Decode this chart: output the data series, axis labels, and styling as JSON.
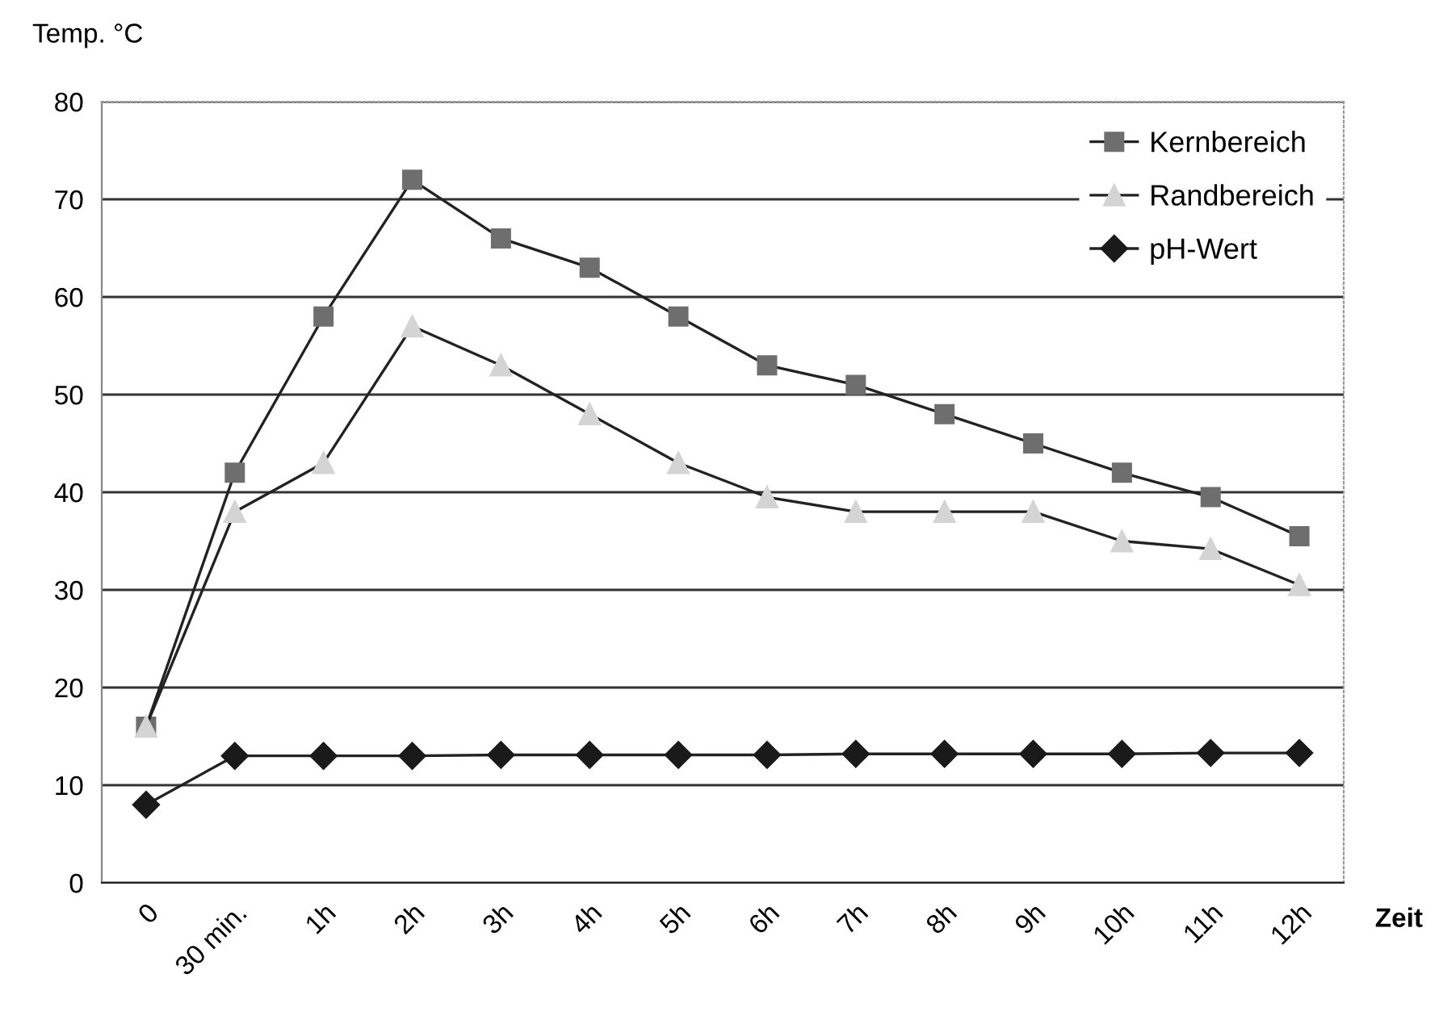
{
  "chart_data": {
    "type": "line",
    "xlabel": "Zeit",
    "ylabel": "Temp. °C",
    "categories": [
      "0",
      "30 min.",
      "1h",
      "2h",
      "3h",
      "4h",
      "5h",
      "6h",
      "7h",
      "8h",
      "9h",
      "10h",
      "11h",
      "12h"
    ],
    "series": [
      {
        "name": "Kernbereich",
        "color": "#6e6e6e",
        "marker": "square",
        "values": [
          16,
          42,
          58,
          72,
          66,
          63,
          58,
          53,
          51,
          48,
          45,
          42,
          39.5,
          35.5
        ]
      },
      {
        "name": "Randbereich",
        "color": "#d4d4d4",
        "marker": "triangle",
        "values": [
          16,
          38,
          43,
          57,
          53,
          48,
          43,
          39.5,
          38,
          38,
          38,
          35,
          34.2,
          30.5
        ]
      },
      {
        "name": "pH-Wert",
        "color": "#1a1a1a",
        "marker": "diamond",
        "values": [
          8,
          13,
          13,
          13,
          13.1,
          13.1,
          13.1,
          13.1,
          13.2,
          13.2,
          13.2,
          13.2,
          13.3,
          13.3
        ]
      }
    ],
    "ylim": [
      0,
      80
    ],
    "yticks": [
      0,
      10,
      20,
      30,
      40,
      50,
      60,
      70,
      80
    ],
    "grid": "y",
    "legend": "top right",
    "line_style": "solid"
  }
}
